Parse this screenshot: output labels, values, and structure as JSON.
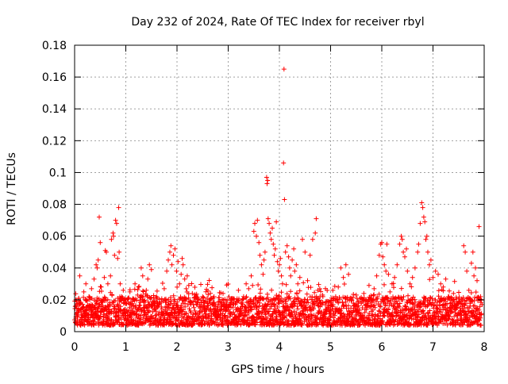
{
  "chart_data": {
    "type": "scatter",
    "title": "Day 232 of 2024, Rate Of TEC Index for receiver rbyl",
    "xlabel": "GPS time / hours",
    "ylabel": "ROTI / TECUs",
    "xlim": [
      0,
      8
    ],
    "ylim": [
      0,
      0.18
    ],
    "x_ticks": [
      0,
      1,
      2,
      3,
      4,
      5,
      6,
      7,
      8
    ],
    "x_tick_labels": [
      "0",
      "1",
      "2",
      "3",
      "4",
      "5",
      "6",
      "7",
      "8"
    ],
    "y_ticks": [
      0,
      0.02,
      0.04,
      0.06,
      0.08,
      0.1,
      0.12,
      0.14,
      0.16,
      0.18
    ],
    "y_tick_labels": [
      "0",
      "0.02",
      "0.04",
      "0.06",
      "0.08",
      "0.1",
      "0.12",
      "0.14",
      "0.16",
      "0.18"
    ],
    "grid": true,
    "marker": "+",
    "marker_color": "#ff0000",
    "series": [
      {
        "name": "ROTI",
        "points": [
          [
            0.02,
            0.016
          ],
          [
            0.05,
            0.012
          ],
          [
            0.08,
            0.021
          ],
          [
            0.1,
            0.035
          ],
          [
            0.12,
            0.018
          ],
          [
            0.15,
            0.009
          ],
          [
            0.18,
            0.025
          ],
          [
            0.2,
            0.013
          ],
          [
            0.22,
            0.03
          ],
          [
            0.25,
            0.011
          ],
          [
            0.28,
            0.022
          ],
          [
            0.3,
            0.016
          ],
          [
            0.33,
            0.027
          ],
          [
            0.35,
            0.01
          ],
          [
            0.38,
            0.033
          ],
          [
            0.4,
            0.015
          ],
          [
            0.42,
            0.042
          ],
          [
            0.44,
            0.04
          ],
          [
            0.46,
            0.045
          ],
          [
            0.48,
            0.072
          ],
          [
            0.5,
            0.056
          ],
          [
            0.52,
            0.028
          ],
          [
            0.55,
            0.014
          ],
          [
            0.58,
            0.034
          ],
          [
            0.6,
            0.051
          ],
          [
            0.62,
            0.05
          ],
          [
            0.65,
            0.03
          ],
          [
            0.68,
            0.012
          ],
          [
            0.7,
            0.035
          ],
          [
            0.72,
            0.058
          ],
          [
            0.75,
            0.062
          ],
          [
            0.76,
            0.06
          ],
          [
            0.78,
            0.048
          ],
          [
            0.8,
            0.07
          ],
          [
            0.82,
            0.068
          ],
          [
            0.84,
            0.046
          ],
          [
            0.86,
            0.078
          ],
          [
            0.87,
            0.05
          ],
          [
            0.89,
            0.03
          ],
          [
            0.92,
            0.022
          ],
          [
            0.95,
            0.026
          ],
          [
            0.98,
            0.014
          ],
          [
            1.0,
            0.02
          ],
          [
            1.03,
            0.012
          ],
          [
            1.05,
            0.018
          ],
          [
            1.08,
            0.025
          ],
          [
            1.1,
            0.009
          ],
          [
            1.13,
            0.02
          ],
          [
            1.15,
            0.016
          ],
          [
            1.18,
            0.03
          ],
          [
            1.2,
            0.011
          ],
          [
            1.23,
            0.023
          ],
          [
            1.25,
            0.028
          ],
          [
            1.28,
            0.015
          ],
          [
            1.3,
            0.04
          ],
          [
            1.33,
            0.035
          ],
          [
            1.35,
            0.019
          ],
          [
            1.38,
            0.012
          ],
          [
            1.4,
            0.026
          ],
          [
            1.43,
            0.033
          ],
          [
            1.46,
            0.042
          ],
          [
            1.5,
            0.039
          ],
          [
            1.55,
            0.014
          ],
          [
            1.6,
            0.022
          ],
          [
            1.65,
            0.017
          ],
          [
            1.7,
            0.011
          ],
          [
            1.75,
            0.027
          ],
          [
            1.8,
            0.038
          ],
          [
            1.83,
            0.045
          ],
          [
            1.86,
            0.05
          ],
          [
            1.88,
            0.054
          ],
          [
            1.9,
            0.042
          ],
          [
            1.93,
            0.048
          ],
          [
            1.96,
            0.052
          ],
          [
            1.99,
            0.038
          ],
          [
            2.02,
            0.044
          ],
          [
            2.05,
            0.03
          ],
          [
            2.08,
            0.036
          ],
          [
            2.1,
            0.046
          ],
          [
            2.12,
            0.042
          ],
          [
            2.15,
            0.033
          ],
          [
            2.18,
            0.027
          ],
          [
            2.2,
            0.035
          ],
          [
            2.23,
            0.029
          ],
          [
            2.26,
            0.018
          ],
          [
            2.3,
            0.024
          ],
          [
            2.35,
            0.013
          ],
          [
            2.4,
            0.02
          ],
          [
            2.45,
            0.016
          ],
          [
            2.5,
            0.022
          ],
          [
            2.55,
            0.011
          ],
          [
            2.6,
            0.018
          ],
          [
            2.65,
            0.014
          ],
          [
            2.7,
            0.021
          ],
          [
            2.75,
            0.01
          ],
          [
            2.8,
            0.017
          ],
          [
            2.85,
            0.013
          ],
          [
            2.9,
            0.024
          ],
          [
            2.95,
            0.009
          ],
          [
            3.0,
            0.015
          ],
          [
            3.05,
            0.02
          ],
          [
            3.1,
            0.012
          ],
          [
            3.15,
            0.018
          ],
          [
            3.2,
            0.026
          ],
          [
            3.25,
            0.013
          ],
          [
            3.3,
            0.022
          ],
          [
            3.35,
            0.03
          ],
          [
            3.4,
            0.027
          ],
          [
            3.45,
            0.035
          ],
          [
            3.5,
            0.063
          ],
          [
            3.52,
            0.068
          ],
          [
            3.55,
            0.06
          ],
          [
            3.57,
            0.07
          ],
          [
            3.6,
            0.056
          ],
          [
            3.62,
            0.048
          ],
          [
            3.65,
            0.042
          ],
          [
            3.68,
            0.036
          ],
          [
            3.7,
            0.045
          ],
          [
            3.72,
            0.05
          ],
          [
            3.75,
            0.097
          ],
          [
            3.76,
            0.093
          ],
          [
            3.77,
            0.095
          ],
          [
            3.78,
            0.071
          ],
          [
            3.8,
            0.068
          ],
          [
            3.82,
            0.062
          ],
          [
            3.84,
            0.058
          ],
          [
            3.86,
            0.065
          ],
          [
            3.88,
            0.055
          ],
          [
            3.9,
            0.048
          ],
          [
            3.92,
            0.052
          ],
          [
            3.94,
            0.069
          ],
          [
            3.96,
            0.044
          ],
          [
            3.98,
            0.038
          ],
          [
            4.0,
            0.042
          ],
          [
            4.02,
            0.046
          ],
          [
            4.04,
            0.035
          ],
          [
            4.06,
            0.03
          ],
          [
            4.08,
            0.106
          ],
          [
            4.09,
            0.165
          ],
          [
            4.1,
            0.083
          ],
          [
            4.12,
            0.05
          ],
          [
            4.15,
            0.054
          ],
          [
            4.18,
            0.047
          ],
          [
            4.2,
            0.04
          ],
          [
            4.22,
            0.035
          ],
          [
            4.25,
            0.045
          ],
          [
            4.28,
            0.052
          ],
          [
            4.3,
            0.038
          ],
          [
            4.33,
            0.042
          ],
          [
            4.36,
            0.03
          ],
          [
            4.4,
            0.034
          ],
          [
            4.45,
            0.058
          ],
          [
            4.5,
            0.05
          ],
          [
            4.55,
            0.032
          ],
          [
            4.6,
            0.048
          ],
          [
            4.65,
            0.058
          ],
          [
            4.7,
            0.062
          ],
          [
            4.72,
            0.071
          ],
          [
            4.75,
            0.026
          ],
          [
            4.8,
            0.018
          ],
          [
            4.85,
            0.022
          ],
          [
            4.9,
            0.014
          ],
          [
            4.95,
            0.019
          ],
          [
            5.0,
            0.011
          ],
          [
            5.05,
            0.017
          ],
          [
            5.1,
            0.022
          ],
          [
            5.15,
            0.028
          ],
          [
            5.2,
            0.04
          ],
          [
            5.25,
            0.034
          ],
          [
            5.3,
            0.042
          ],
          [
            5.35,
            0.036
          ],
          [
            5.4,
            0.02
          ],
          [
            5.45,
            0.016
          ],
          [
            5.5,
            0.023
          ],
          [
            5.55,
            0.012
          ],
          [
            5.6,
            0.018
          ],
          [
            5.65,
            0.024
          ],
          [
            5.7,
            0.014
          ],
          [
            5.75,
            0.029
          ],
          [
            5.8,
            0.021
          ],
          [
            5.85,
            0.027
          ],
          [
            5.9,
            0.035
          ],
          [
            5.95,
            0.048
          ],
          [
            5.98,
            0.055
          ],
          [
            6.0,
            0.056
          ],
          [
            6.02,
            0.047
          ],
          [
            6.05,
            0.042
          ],
          [
            6.08,
            0.038
          ],
          [
            6.1,
            0.055
          ],
          [
            6.13,
            0.036
          ],
          [
            6.16,
            0.025
          ],
          [
            6.2,
            0.03
          ],
          [
            6.25,
            0.034
          ],
          [
            6.3,
            0.042
          ],
          [
            6.35,
            0.055
          ],
          [
            6.38,
            0.06
          ],
          [
            6.4,
            0.058
          ],
          [
            6.42,
            0.05
          ],
          [
            6.45,
            0.047
          ],
          [
            6.48,
            0.052
          ],
          [
            6.5,
            0.038
          ],
          [
            6.55,
            0.03
          ],
          [
            6.6,
            0.034
          ],
          [
            6.65,
            0.04
          ],
          [
            6.7,
            0.05
          ],
          [
            6.72,
            0.055
          ],
          [
            6.75,
            0.068
          ],
          [
            6.78,
            0.081
          ],
          [
            6.8,
            0.078
          ],
          [
            6.82,
            0.072
          ],
          [
            6.84,
            0.069
          ],
          [
            6.86,
            0.058
          ],
          [
            6.88,
            0.06
          ],
          [
            6.9,
            0.05
          ],
          [
            6.93,
            0.042
          ],
          [
            6.96,
            0.045
          ],
          [
            7.0,
            0.034
          ],
          [
            7.05,
            0.038
          ],
          [
            7.1,
            0.036
          ],
          [
            7.15,
            0.03
          ],
          [
            7.2,
            0.028
          ],
          [
            7.25,
            0.033
          ],
          [
            7.3,
            0.022
          ],
          [
            7.35,
            0.018
          ],
          [
            7.4,
            0.024
          ],
          [
            7.45,
            0.015
          ],
          [
            7.5,
            0.019
          ],
          [
            7.55,
            0.013
          ],
          [
            7.6,
            0.054
          ],
          [
            7.63,
            0.05
          ],
          [
            7.66,
            0.038
          ],
          [
            7.7,
            0.026
          ],
          [
            7.75,
            0.043
          ],
          [
            7.78,
            0.05
          ],
          [
            7.8,
            0.035
          ],
          [
            7.83,
            0.04
          ],
          [
            7.86,
            0.032
          ],
          [
            7.9,
            0.066
          ],
          [
            7.93,
            0.022
          ],
          [
            7.96,
            0.017
          ]
        ]
      }
    ],
    "dense_band": {
      "description": "dense cloud of points between roughly 0.005 and 0.022 across all hours",
      "y_range": [
        0.004,
        0.022
      ],
      "x_range": [
        0,
        7.95
      ]
    }
  }
}
